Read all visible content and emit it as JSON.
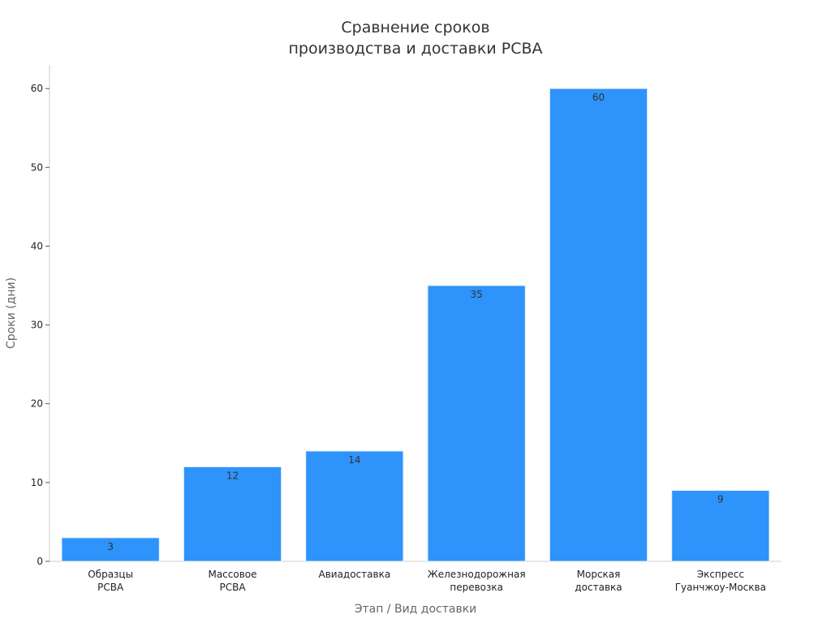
{
  "chart_data": {
    "type": "bar",
    "title": "Сравнение сроков\nпроизводства и доставки PCBA",
    "xlabel": "Этап / Вид доставки",
    "ylabel": "Сроки (дни)",
    "ylim": [
      0,
      63
    ],
    "yticks": [
      0,
      10,
      20,
      30,
      40,
      50,
      60
    ],
    "grid": false,
    "categories": [
      "Образцы\nPCBA",
      "Массовое\nPCBA",
      "Авиадоставка",
      "Железнодорожная\nперевозка",
      "Морская\nдоставка",
      "Экспресс\nГуанчжоу-Москва"
    ],
    "values": [
      3,
      12,
      14,
      35,
      60,
      9
    ],
    "data_labels": [
      "3",
      "12",
      "14",
      "35",
      "60",
      "9"
    ],
    "colors": {
      "bar": "#2e93fa",
      "bar_edge": "#e6f0fb",
      "axis": "#cccccc",
      "text": "#333333",
      "axis_title": "#666666"
    }
  }
}
